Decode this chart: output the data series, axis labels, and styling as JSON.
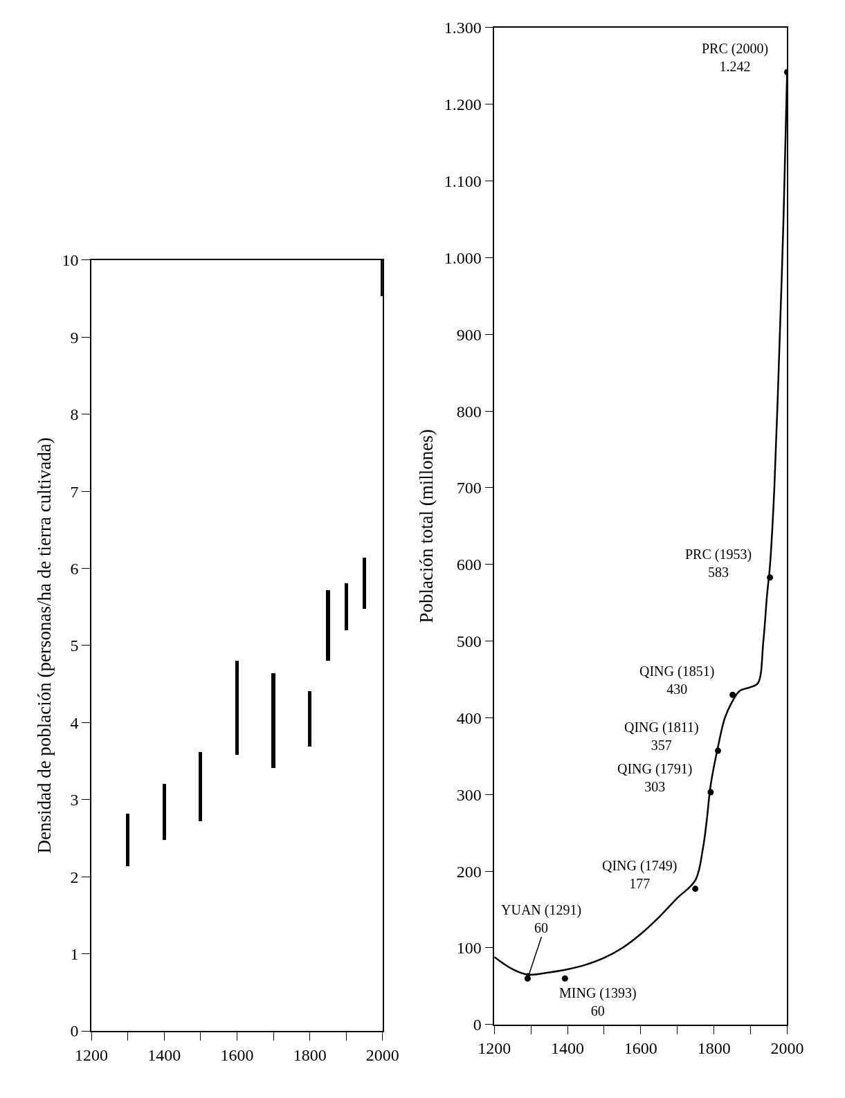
{
  "chart_data": [
    {
      "type": "bar",
      "ylabel": "Densidad de población (personas/ha de tierra cultivada)",
      "x": [
        1300,
        1400,
        1500,
        1600,
        1700,
        1800,
        1850,
        1900,
        1950,
        2000
      ],
      "base": [
        2.14,
        2.48,
        2.72,
        3.58,
        3.41,
        3.69,
        4.8,
        5.2,
        5.48,
        9.53
      ],
      "values": [
        0.68,
        0.73,
        0.9,
        1.22,
        1.23,
        0.72,
        0.92,
        0.61,
        0.66,
        0.47
      ],
      "color": "#000000",
      "xlim": [
        1200,
        2000
      ],
      "xticks": [
        1200,
        {
          "value": 1300,
          "label": null
        },
        1400,
        {
          "value": 1500,
          "label": null
        },
        1600,
        {
          "value": 1700,
          "label": null
        },
        1800,
        {
          "value": 1900,
          "label": null
        },
        2000
      ],
      "ylim": [
        0,
        10
      ],
      "yticks": [
        0,
        1,
        2,
        3,
        4,
        5,
        6,
        7,
        8,
        9,
        10
      ]
    },
    {
      "type": "line",
      "ylabel": "Población total (millones)",
      "series": [
        {
          "type": "line",
          "color": "#000000",
          "x": [
            1200,
            1250,
            1291,
            1350,
            1400,
            1450,
            1500,
            1550,
            1600,
            1650,
            1700,
            1749,
            1770,
            1780,
            1791,
            1811,
            1830,
            1851,
            1870,
            1900,
            1920,
            1935,
            1945,
            1953,
            1965,
            1980,
            1990,
            2000
          ],
          "values": [
            88,
            72,
            65,
            68,
            72,
            78,
            87,
            100,
            118,
            140,
            165,
            188,
            230,
            265,
            312,
            362,
            400,
            422,
            435,
            440,
            445,
            500,
            560,
            598,
            700,
            900,
            1050,
            1244
          ]
        },
        {
          "type": "scatter",
          "color": "#000000",
          "marker": "circle",
          "x": [
            1291,
            1393,
            1749,
            1791,
            1811,
            1851,
            1953,
            2000
          ],
          "values": [
            60,
            60,
            177,
            303,
            357,
            430,
            583,
            1242
          ]
        }
      ],
      "annotations": [
        {
          "text": "YUAN (1291)\n60",
          "x": 1291,
          "y": 60
        },
        {
          "text": "MING (1393)\n60",
          "x": 1393,
          "y": 60
        },
        {
          "text": "QING (1749)\n177",
          "x": 1749,
          "y": 177
        },
        {
          "text": "QING (1791)\n303",
          "x": 1791,
          "y": 303
        },
        {
          "text": "QING (1811)\n357",
          "x": 1811,
          "y": 357
        },
        {
          "text": "QING (1851)\n430",
          "x": 1851,
          "y": 430
        },
        {
          "text": "PRC (1953)\n583",
          "x": 1953,
          "y": 583
        },
        {
          "text": "PRC (2000)\n1.242",
          "x": 2000,
          "y": 1242
        }
      ],
      "xlim": [
        1200,
        2000
      ],
      "xticks": [
        1200,
        {
          "value": 1300,
          "label": null
        },
        1400,
        {
          "value": 1500,
          "label": null
        },
        1600,
        {
          "value": 1700,
          "label": null
        },
        1800,
        {
          "value": 1900,
          "label": null
        },
        2000
      ],
      "ylim": [
        0,
        1300
      ],
      "yticks": [
        0,
        100,
        200,
        300,
        400,
        500,
        600,
        700,
        800,
        900,
        {
          "value": 1000,
          "label": "1.000"
        },
        {
          "value": 1100,
          "label": "1.100"
        },
        {
          "value": 1200,
          "label": "1.200"
        },
        {
          "value": 1300,
          "label": "1.300"
        }
      ]
    }
  ]
}
